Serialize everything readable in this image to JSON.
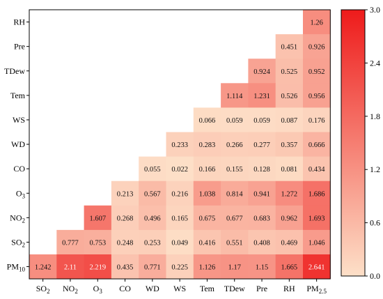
{
  "chart_data": {
    "type": "heatmap",
    "title": "",
    "xlabel": "",
    "ylabel": "",
    "x_categories": [
      "SO2",
      "NO2",
      "O3",
      "CO",
      "WD",
      "WS",
      "Tem",
      "TDew",
      "Pre",
      "RH",
      "PM2.5"
    ],
    "y_categories": [
      "RH",
      "Pre",
      "TDew",
      "Tem",
      "WS",
      "WD",
      "CO",
      "O3",
      "NO2",
      "SO2",
      "PM10"
    ],
    "x_tick_labels": [
      {
        "base": "SO",
        "sub": "2"
      },
      {
        "base": "NO",
        "sub": "2"
      },
      {
        "base": "O",
        "sub": "3"
      },
      {
        "base": "CO",
        "sub": ""
      },
      {
        "base": "WD",
        "sub": ""
      },
      {
        "base": "WS",
        "sub": ""
      },
      {
        "base": "Tem",
        "sub": ""
      },
      {
        "base": "TDew",
        "sub": ""
      },
      {
        "base": "Pre",
        "sub": ""
      },
      {
        "base": "RH",
        "sub": ""
      },
      {
        "base": "PM",
        "sub": "2.5"
      }
    ],
    "y_tick_labels": [
      {
        "base": "RH",
        "sub": ""
      },
      {
        "base": "Pre",
        "sub": ""
      },
      {
        "base": "TDew",
        "sub": ""
      },
      {
        "base": "Tem",
        "sub": ""
      },
      {
        "base": "WS",
        "sub": ""
      },
      {
        "base": "WD",
        "sub": ""
      },
      {
        "base": "CO",
        "sub": ""
      },
      {
        "base": "O",
        "sub": "3"
      },
      {
        "base": "NO",
        "sub": "2"
      },
      {
        "base": "SO",
        "sub": "2"
      },
      {
        "base": "PM",
        "sub": "10"
      }
    ],
    "values": [
      [
        null,
        null,
        null,
        null,
        null,
        null,
        null,
        null,
        null,
        null,
        "1.26"
      ],
      [
        null,
        null,
        null,
        null,
        null,
        null,
        null,
        null,
        null,
        "0.451",
        "0.926"
      ],
      [
        null,
        null,
        null,
        null,
        null,
        null,
        null,
        null,
        "0.924",
        "0.525",
        "0.952"
      ],
      [
        null,
        null,
        null,
        null,
        null,
        null,
        null,
        "1.114",
        "1.231",
        "0.526",
        "0.956"
      ],
      [
        null,
        null,
        null,
        null,
        null,
        null,
        "0.066",
        "0.059",
        "0.059",
        "0.087",
        "0.176"
      ],
      [
        null,
        null,
        null,
        null,
        null,
        "0.233",
        "0.283",
        "0.266",
        "0.277",
        "0.357",
        "0.666"
      ],
      [
        null,
        null,
        null,
        null,
        "0.055",
        "0.022",
        "0.166",
        "0.155",
        "0.128",
        "0.081",
        "0.434"
      ],
      [
        null,
        null,
        null,
        "0.213",
        "0.567",
        "0.216",
        "1.038",
        "0.814",
        "0.941",
        "1.272",
        "1.686"
      ],
      [
        null,
        null,
        "1.607",
        "0.268",
        "0.496",
        "0.165",
        "0.675",
        "0.677",
        "0.683",
        "0.962",
        "1.693"
      ],
      [
        null,
        "0.777",
        "0.753",
        "0.248",
        "0.253",
        "0.049",
        "0.416",
        "0.551",
        "0.408",
        "0.469",
        "1.046"
      ],
      [
        "1.242",
        "2.11",
        "2.219",
        "0.435",
        "0.771",
        "0.225",
        "1.126",
        "1.17",
        "1.15",
        "1.665",
        "2.641"
      ]
    ],
    "colorbar": {
      "min": 0,
      "max": 3,
      "ticks": [
        "0.0",
        "0.6",
        "1.2",
        "1.8",
        "2.4",
        "3.0"
      ],
      "color_low": "#fde0c8",
      "color_high": "#ee1b1b"
    },
    "grid": false,
    "legend": "colorbar-right"
  }
}
